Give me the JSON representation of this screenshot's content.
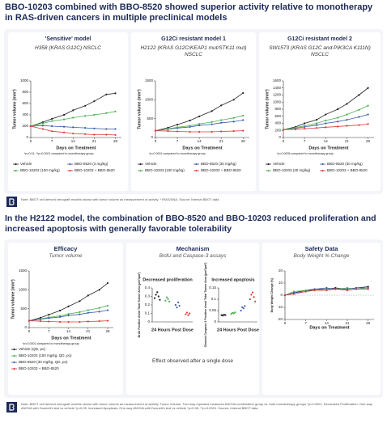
{
  "header": {
    "title": "BBO-10203 combined with BBO-8520 showed superior activity relative to monotherapy in RAS-driven cancers in multiple preclinical models"
  },
  "top_note": "Note: BBOT cell derived xenograft models shown with tumor volume as measurement of activity. * IRAS/DNA. Source: Internal BBOT data",
  "section2": {
    "title": "In the H2122 model, the combination of BBO-8520 and BBO-10203 reduced proliferation and increased apoptosis with generally favorable tolerability",
    "panels": [
      {
        "title": "Efficacy",
        "subtitle": "Tumor volume"
      },
      {
        "title": "Mechanism",
        "subtitle": "BrdU and Caspase-3 assays"
      },
      {
        "title": "Safety Data",
        "subtitle": "Body Weight % Change"
      }
    ],
    "mechanism_note": "Effect observed after a single dose"
  },
  "footnote": "Note: BBOT cell derived xenograft models shown with tumor volume as measurement of activity. Tumor Volume: Two-way repeated measures ANOVA combination group vs. both monotherapy groups *p<0.0001. Decreased Proliferation: One-way ANOVA with Dunnett's test vs vehicle *p<0.05. Increased Apoptosis: One-way ANOVA with Dunnett's test vs vehicle *p<0.05, **p<0.0001. Source: Internal BBOT data",
  "chart_data": [
    {
      "type": "line",
      "title": "'Sensitive' model",
      "subtitle": "H358 (KRAS G12C) NSCLC",
      "x_label": "Days on Treatment",
      "y_label": "Tumor volume (mm³)",
      "note": "*p<0.01, **p<0.0001 compared to monotherapy group",
      "x": [
        0,
        4,
        7,
        11,
        14,
        18,
        21,
        25,
        28
      ],
      "xlim": [
        0,
        30
      ],
      "xticks": [
        0,
        7,
        14,
        21,
        28
      ],
      "ylim": [
        0,
        1000
      ],
      "yticks": [
        0,
        200,
        400,
        600,
        800,
        1000
      ],
      "series": [
        {
          "name": "Vehicle",
          "color": "#222222",
          "values": [
            200,
            270,
            330,
            400,
            480,
            560,
            640,
            760,
            780
          ]
        },
        {
          "name": "BBO-8520 (3 mg/kg)",
          "color": "#3b5bab",
          "values": [
            200,
            210,
            200,
            190,
            180,
            170,
            160,
            150,
            150
          ]
        },
        {
          "name": "BBO-10203 (100 mg/kg)",
          "color": "#4caf50",
          "values": [
            200,
            250,
            290,
            320,
            350,
            380,
            400,
            430,
            460
          ]
        },
        {
          "name": "BBO-10203 + BBO-8520",
          "color": "#e03b3b",
          "values": [
            200,
            150,
            110,
            90,
            70,
            60,
            50,
            50,
            45
          ]
        }
      ]
    },
    {
      "type": "line",
      "title": "G12Ci resistant model 1",
      "subtitle": "H2122 (KRAS G12C/KEAP1 mut/STK11 mut) NSCLC",
      "x_label": "Days on Treatment",
      "y_label": "Tumor volume (mm³)",
      "note": "*p<0.0001 compared to monotherapy group",
      "x": [
        0,
        4,
        7,
        11,
        14,
        18,
        21,
        25,
        28
      ],
      "xlim": [
        0,
        30
      ],
      "xticks": [
        0,
        7,
        14,
        21,
        28
      ],
      "ylim": [
        0,
        1500
      ],
      "yticks": [
        0,
        500,
        1000,
        1500
      ],
      "series": [
        {
          "name": "Vehicle",
          "color": "#222222",
          "values": [
            180,
            260,
            340,
            450,
            560,
            700,
            850,
            1000,
            1180
          ]
        },
        {
          "name": "BBO-8520 (30 mg/kg)",
          "color": "#3b5bab",
          "values": [
            180,
            220,
            250,
            280,
            320,
            350,
            390,
            420,
            460
          ]
        },
        {
          "name": "BBO-10203 (100 mg/kg)",
          "color": "#4caf50",
          "values": [
            180,
            230,
            270,
            310,
            360,
            410,
            460,
            520,
            580
          ]
        },
        {
          "name": "BBO-10203 + BBO-8520",
          "color": "#e03b3b",
          "values": [
            180,
            170,
            160,
            150,
            150,
            150,
            160,
            170,
            180
          ]
        }
      ]
    },
    {
      "type": "line",
      "title": "G12Ci resistant model 2",
      "subtitle": "SW1573 (KRAS G12C and PIK3CA K111N) NSCLC",
      "x_label": "Days on Treatment",
      "y_label": "Tumor volume (mm³)",
      "note": "*p<0.0005 compared to monotherapy group",
      "x": [
        0,
        4,
        7,
        11,
        14,
        18,
        21,
        25,
        28
      ],
      "xlim": [
        0,
        30
      ],
      "xticks": [
        0,
        7,
        14,
        21,
        28
      ],
      "ylim": [
        0,
        1600
      ],
      "yticks": [
        0,
        200,
        400,
        600,
        800,
        1000,
        1200,
        1400,
        1600
      ],
      "series": [
        {
          "name": "Vehicle",
          "color": "#222222",
          "values": [
            220,
            300,
            400,
            500,
            650,
            800,
            950,
            1200,
            1400
          ]
        },
        {
          "name": "BBO-8520 (30 mg/kg)",
          "color": "#3b5bab",
          "values": [
            220,
            260,
            300,
            350,
            400,
            450,
            500,
            580,
            650
          ]
        },
        {
          "name": "BBO-10203 (30 mg/kg)",
          "color": "#4caf50",
          "values": [
            220,
            280,
            330,
            400,
            480,
            560,
            650,
            780,
            900
          ]
        },
        {
          "name": "BBO-10203 + BBO-8520",
          "color": "#e03b3b",
          "values": [
            220,
            230,
            250,
            270,
            290,
            310,
            330,
            350,
            380
          ]
        }
      ]
    },
    {
      "type": "line",
      "x_label": "Days on Treatment",
      "y_label": "Tumor volume (mm³)",
      "note": "*p<0.0001 compared to monotherapy group",
      "x": [
        0,
        4,
        7,
        11,
        14,
        18,
        21,
        25,
        28
      ],
      "xlim": [
        0,
        30
      ],
      "xticks": [
        0,
        7,
        14,
        21,
        28
      ],
      "ylim": [
        0,
        1500
      ],
      "yticks": [
        0,
        500,
        1000,
        1500
      ],
      "series": [
        {
          "name": "Vehicle (QD, po)",
          "color": "#222222",
          "values": [
            180,
            260,
            340,
            450,
            560,
            700,
            850,
            1000,
            1180
          ]
        },
        {
          "name": "BBO-10203 (100 mg/kg, QD, po)",
          "color": "#4caf50",
          "values": [
            180,
            230,
            270,
            310,
            360,
            410,
            460,
            520,
            580
          ]
        },
        {
          "name": "BBO-8520 (30 mg/kg, QD, po)",
          "color": "#3b5bab",
          "values": [
            180,
            220,
            250,
            280,
            320,
            350,
            390,
            420,
            460
          ]
        },
        {
          "name": "BBO-10203 + BBO-8520",
          "color": "#e03b3b",
          "values": [
            180,
            170,
            160,
            150,
            150,
            150,
            160,
            170,
            180
          ]
        }
      ]
    },
    {
      "type": "strip",
      "title": "Decreased proliferation",
      "x_label": "24 Hours Post Dose",
      "y_label": "BrdU Positive Area/ Total Tumor Area (µm²/µm²)",
      "ylim": [
        0,
        0.4
      ],
      "yticks": [
        0,
        0.1,
        0.2,
        0.3,
        0.4
      ],
      "series": [
        {
          "color": "#222222",
          "values": [
            0.28,
            0.32,
            0.35,
            0.3,
            0.26
          ]
        },
        {
          "color": "#4caf50",
          "values": [
            0.25,
            0.29,
            0.27,
            0.24
          ]
        },
        {
          "color": "#3b5bab",
          "values": [
            0.2,
            0.17,
            0.23,
            0.19
          ]
        },
        {
          "color": "#e03b3b",
          "values": [
            0.09,
            0.11,
            0.08,
            0.1
          ]
        }
      ]
    },
    {
      "type": "strip",
      "title": "Increased apoptosis",
      "x_label": "24 Hours Post Dose",
      "y_label": "Cleaved Caspase-3 Positive Area/ Total Tumor Area (µm²/µm²)",
      "ylim": [
        0,
        0.15
      ],
      "yticks": [
        0,
        0.05,
        0.1,
        0.15
      ],
      "series": [
        {
          "color": "#222222",
          "values": [
            0.03,
            0.028,
            0.032,
            0.03
          ]
        },
        {
          "color": "#4caf50",
          "values": [
            0.035,
            0.04,
            0.038,
            0.042
          ]
        },
        {
          "color": "#3b5bab",
          "values": [
            0.05,
            0.065,
            0.06,
            0.07
          ]
        },
        {
          "color": "#e03b3b",
          "values": [
            0.1,
            0.12,
            0.13,
            0.11,
            0.09
          ]
        }
      ]
    },
    {
      "type": "line",
      "x_label": "Days on Treatment",
      "y_label": "Body Weight Change (%)",
      "x": [
        0,
        3,
        7,
        10,
        14,
        17,
        21,
        24,
        28
      ],
      "xlim": [
        0,
        30
      ],
      "xticks": [
        0,
        7,
        14,
        21,
        28
      ],
      "ylim": [
        -20,
        20
      ],
      "yticks": [
        -20,
        -10,
        0,
        10,
        20
      ],
      "series": [
        {
          "color": "#222222",
          "values": [
            0,
            2,
            4,
            5,
            5,
            6,
            5,
            6,
            7
          ]
        },
        {
          "color": "#4caf50",
          "values": [
            0,
            3,
            4,
            4,
            5,
            5,
            6,
            5,
            6
          ]
        },
        {
          "color": "#3b5bab",
          "values": [
            0,
            2,
            3,
            5,
            6,
            5,
            5,
            6,
            6
          ]
        },
        {
          "color": "#e03b3b",
          "values": [
            0,
            1,
            3,
            4,
            4,
            5,
            4,
            5,
            5
          ]
        }
      ]
    }
  ]
}
